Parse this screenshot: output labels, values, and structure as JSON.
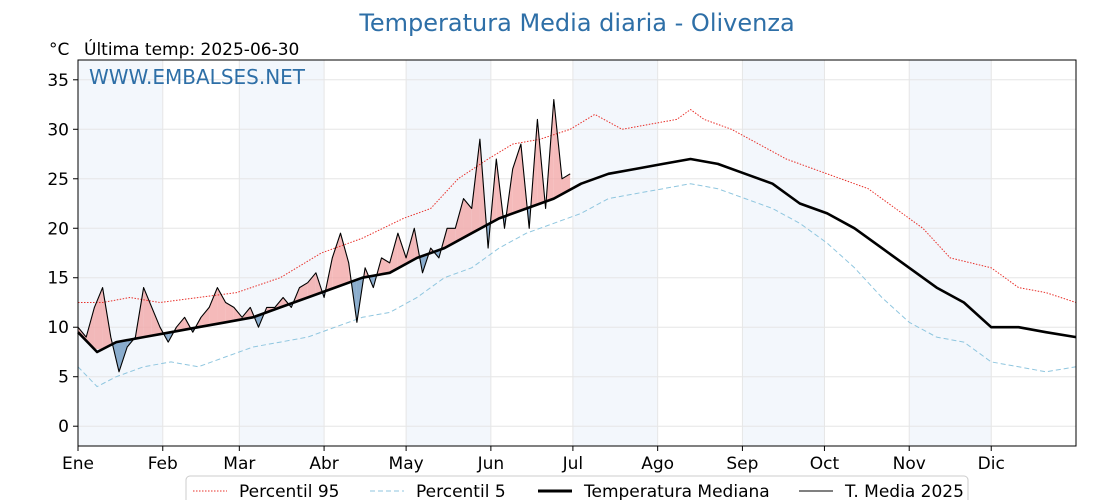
{
  "chart_data": {
    "type": "line",
    "title": "Temperatura Media diaria - Olivenza",
    "unit_label": "°C",
    "subtitle": "Última temp: 2025-06-30",
    "watermark": "WWW.EMBALSES.NET",
    "ylim": [
      -2,
      37
    ],
    "yticks": [
      0,
      5,
      10,
      15,
      20,
      25,
      30,
      35
    ],
    "xlim": [
      1,
      366
    ],
    "month_labels": [
      "Ene",
      "Feb",
      "Mar",
      "Abr",
      "May",
      "Jun",
      "Jul",
      "Ago",
      "Sep",
      "Oct",
      "Nov",
      "Dic"
    ],
    "month_starts": [
      1,
      32,
      60,
      91,
      121,
      152,
      182,
      213,
      244,
      274,
      305,
      335
    ],
    "grid": true,
    "legend_position": "bottom",
    "series": [
      {
        "name": "Percentil 95",
        "color": "#e8302a",
        "style": "dotted",
        "x": [
          1,
          10,
          20,
          31,
          45,
          59,
          75,
          90,
          105,
          120,
          130,
          140,
          151,
          160,
          170,
          181,
          190,
          200,
          210,
          220,
          225,
          230,
          240,
          250,
          260,
          270,
          280,
          290,
          300,
          310,
          320,
          335,
          345,
          355,
          366
        ],
        "y": [
          12.5,
          12.5,
          13,
          12.5,
          13,
          13.5,
          15,
          17.5,
          19,
          21,
          22,
          25,
          27,
          28.5,
          29,
          30,
          31.5,
          30,
          30.5,
          31,
          32,
          31,
          30,
          28.5,
          27,
          26,
          25,
          24,
          22,
          20,
          17,
          16,
          14,
          13.5,
          12.5
        ]
      },
      {
        "name": "Percentil 5",
        "color": "#8fc6df",
        "style": "dashed",
        "x": [
          1,
          8,
          15,
          25,
          35,
          45,
          55,
          65,
          75,
          85,
          95,
          105,
          115,
          125,
          135,
          145,
          155,
          165,
          175,
          185,
          195,
          205,
          215,
          225,
          235,
          245,
          255,
          265,
          275,
          285,
          295,
          305,
          315,
          325,
          335,
          345,
          355,
          366
        ],
        "y": [
          6,
          4,
          5,
          6,
          6.5,
          6,
          7,
          8,
          8.5,
          9,
          10,
          11,
          11.5,
          13,
          15,
          16,
          18,
          19.5,
          20.5,
          21.5,
          23,
          23.5,
          24,
          24.5,
          24,
          23,
          22,
          20.5,
          18.5,
          16,
          13,
          10.5,
          9,
          8.5,
          6.5,
          6,
          5.5,
          6
        ]
      },
      {
        "name": "Temperatura Mediana",
        "color": "#000000",
        "style": "thick",
        "x": [
          1,
          8,
          15,
          25,
          35,
          45,
          55,
          65,
          75,
          85,
          95,
          105,
          115,
          125,
          135,
          145,
          155,
          165,
          175,
          185,
          195,
          205,
          215,
          225,
          235,
          245,
          255,
          265,
          275,
          285,
          295,
          305,
          315,
          325,
          335,
          345,
          355,
          366
        ],
        "y": [
          9.5,
          7.5,
          8.5,
          9,
          9.5,
          10,
          10.5,
          11,
          12,
          13,
          14,
          15,
          15.5,
          17,
          18,
          19.5,
          21,
          22,
          23,
          24.5,
          25.5,
          26,
          26.5,
          27,
          26.5,
          25.5,
          24.5,
          22.5,
          21.5,
          20,
          18,
          16,
          14,
          12.5,
          10,
          10,
          9.5,
          9
        ]
      },
      {
        "name": "T. Media 2025",
        "color": "#000000",
        "style": "solid",
        "x": [
          1,
          4,
          7,
          10,
          13,
          16,
          19,
          22,
          25,
          28,
          31,
          34,
          37,
          40,
          43,
          46,
          49,
          52,
          55,
          58,
          61,
          64,
          67,
          70,
          73,
          76,
          79,
          82,
          85,
          88,
          91,
          94,
          97,
          100,
          103,
          106,
          109,
          112,
          115,
          118,
          121,
          124,
          127,
          130,
          133,
          136,
          139,
          142,
          145,
          148,
          151,
          154,
          157,
          160,
          163,
          166,
          169,
          172,
          175,
          178,
          181
        ],
        "y": [
          10,
          9,
          12,
          14,
          9,
          5.5,
          8,
          9,
          14,
          12,
          10,
          8.5,
          10,
          11,
          9.5,
          11,
          12,
          14,
          12.5,
          12,
          11,
          12,
          10,
          12,
          12,
          13,
          12,
          14,
          14.5,
          15.5,
          13,
          17,
          19.5,
          16.5,
          10.5,
          16,
          14,
          17,
          16.5,
          19.5,
          17,
          20,
          15.5,
          18,
          17,
          20,
          20,
          23,
          22,
          29,
          18,
          27,
          20,
          26,
          28.5,
          20,
          31,
          22,
          33,
          25,
          25.5
        ]
      }
    ]
  }
}
